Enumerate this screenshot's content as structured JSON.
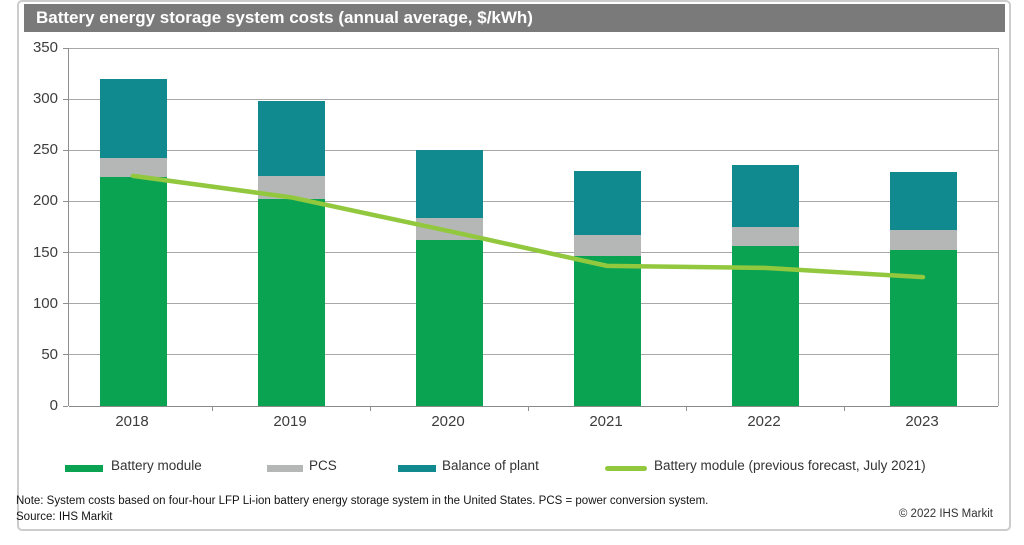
{
  "header": {
    "title": "Battery energy storage system costs (annual average, $/kWh)",
    "bg_color": "#7a7a7a"
  },
  "chart_data": {
    "type": "bar",
    "stacked": true,
    "title": "Battery energy storage system costs (annual average, $/kWh)",
    "categories": [
      "2018",
      "2019",
      "2020",
      "2021",
      "2022",
      "2023"
    ],
    "series": [
      {
        "name": "Battery module",
        "color": "#0aa351",
        "values": [
          224,
          202,
          162,
          147,
          156,
          153
        ]
      },
      {
        "name": "PCS",
        "color": "#b5b7b6",
        "values": [
          18,
          23,
          22,
          20,
          19,
          19
        ]
      },
      {
        "name": "Balance of plant",
        "color": "#108a8e",
        "values": [
          78,
          73,
          66,
          63,
          61,
          57
        ]
      }
    ],
    "line_series": {
      "name": "Battery module (previous forecast, July 2021)",
      "color": "#92c83e",
      "values": [
        225,
        204,
        171,
        137,
        135,
        126
      ]
    },
    "stack_totals": [
      320,
      298,
      250,
      230,
      236,
      229
    ],
    "xlabel": "",
    "ylabel": "",
    "ylim": [
      0,
      350
    ],
    "yticks": [
      0,
      50,
      100,
      150,
      200,
      250,
      300,
      350
    ],
    "grid": true,
    "legend_position": "bottom"
  },
  "legend": {
    "items": [
      {
        "label": "Battery module",
        "color": "#0aa351",
        "type": "box"
      },
      {
        "label": "PCS",
        "color": "#b5b7b6",
        "type": "box"
      },
      {
        "label": "Balance of plant",
        "color": "#108a8e",
        "type": "box"
      },
      {
        "label": "Battery module (previous forecast, July 2021)",
        "color": "#92c83e",
        "type": "line"
      }
    ]
  },
  "footnotes": {
    "note": "Note: System costs based on four-hour LFP Li-ion battery energy storage system in the United States. PCS = power conversion system.",
    "source": "Source: IHS Markit",
    "copyright": "© 2022 IHS Markit"
  }
}
